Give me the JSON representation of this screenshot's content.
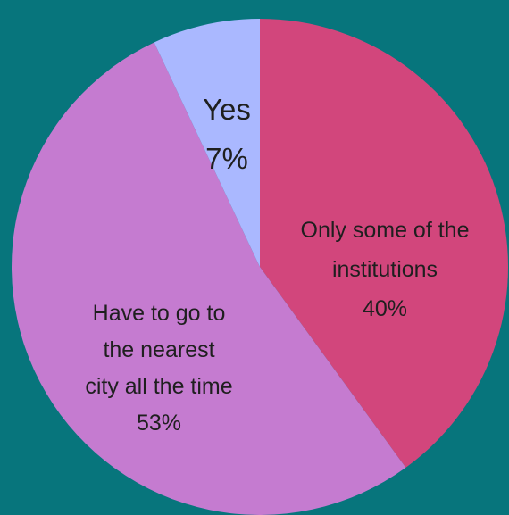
{
  "chart_data": {
    "type": "pie",
    "start_angle_deg": 0,
    "slices": [
      {
        "label": "Only some of the institutions",
        "value": 40,
        "display": "40%",
        "color": "#d2467c"
      },
      {
        "label": "Have to go to the nearest city all the time",
        "value": 53,
        "display": "53%",
        "color": "#c57bd0"
      },
      {
        "label": "Yes",
        "value": 7,
        "display": "7%",
        "color": "#aab8ff"
      }
    ],
    "legend": null
  },
  "colors": {
    "background": "#07757c"
  }
}
